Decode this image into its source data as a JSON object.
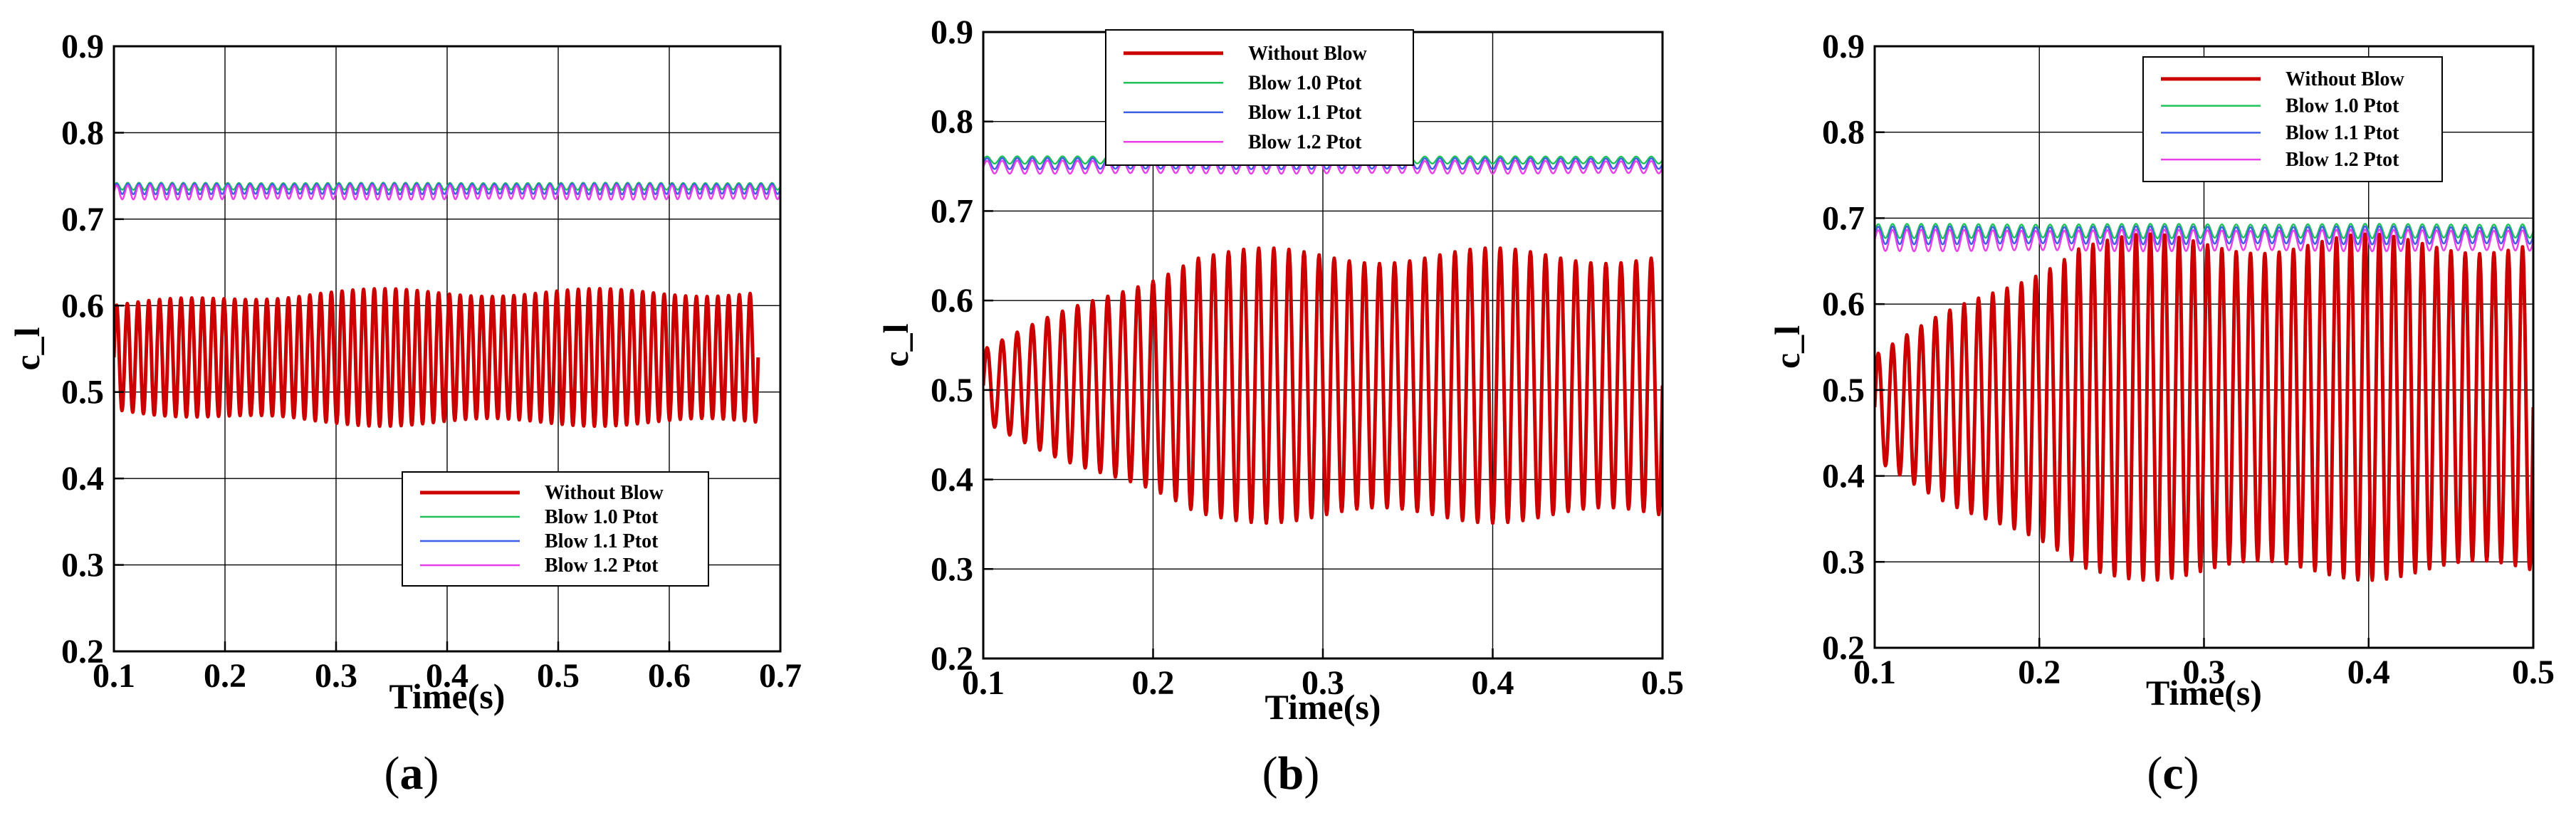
{
  "series_styles": [
    {
      "name": "Without Blow",
      "color": "#cc0000",
      "width": 5
    },
    {
      "name": "Blow 1.0 Ptot",
      "color": "#22c25a",
      "width": 2.4
    },
    {
      "name": "Blow 1.1 Ptot",
      "color": "#3f5fe8",
      "width": 2.4
    },
    {
      "name": "Blow 1.2 Ptot",
      "color": "#e83fe8",
      "width": 2.4
    }
  ],
  "chart_data": [
    {
      "type": "line",
      "panel_label": "a",
      "xlabel": "Time(s)",
      "ylabel": "c_l",
      "xlim": [
        0.1,
        0.7
      ],
      "ylim": [
        0.2,
        0.9
      ],
      "xticks": [
        0.1,
        0.2,
        0.3,
        0.4,
        0.5,
        0.6,
        0.7
      ],
      "xtick_labels": [
        "0.1",
        "0.2",
        "0.3",
        "0.4",
        "0.5",
        "0.6",
        "0.7"
      ],
      "yticks": [
        0.2,
        0.3,
        0.4,
        0.5,
        0.6,
        0.7,
        0.8,
        0.9
      ],
      "ytick_labels": [
        "0.2",
        "0.3",
        "0.4",
        "0.5",
        "0.6",
        "0.7",
        "0.8",
        "0.9"
      ],
      "grid": true,
      "legend": "bottom-center",
      "series": [
        {
          "name": "Without Blow",
          "x_start": 0.1,
          "x_end": 0.68,
          "mean": 0.54,
          "amplitude_start": 0.06,
          "amplitude_end": 0.075,
          "cycles": 60
        },
        {
          "name": "Blow 1.0 Ptot",
          "x_start": 0.1,
          "x_end": 0.7,
          "mean": 0.738,
          "amplitude_start": 0.004,
          "amplitude_end": 0.004,
          "cycles": 60
        },
        {
          "name": "Blow 1.1 Ptot",
          "x_start": 0.1,
          "x_end": 0.7,
          "mean": 0.735,
          "amplitude_start": 0.006,
          "amplitude_end": 0.006,
          "cycles": 60
        },
        {
          "name": "Blow 1.2 Ptot",
          "x_start": 0.1,
          "x_end": 0.7,
          "mean": 0.731,
          "amplitude_start": 0.008,
          "amplitude_end": 0.008,
          "cycles": 60
        }
      ]
    },
    {
      "type": "line",
      "panel_label": "b",
      "xlabel": "Time(s)",
      "ylabel": "c_l",
      "xlim": [
        0.1,
        0.5
      ],
      "ylim": [
        0.2,
        0.9
      ],
      "xticks": [
        0.1,
        0.2,
        0.3,
        0.4,
        0.5
      ],
      "xtick_labels": [
        "0.1",
        "0.2",
        "0.3",
        "0.4",
        "0.5"
      ],
      "yticks": [
        0.2,
        0.3,
        0.4,
        0.5,
        0.6,
        0.7,
        0.8,
        0.9
      ],
      "ytick_labels": [
        "0.2",
        "0.3",
        "0.4",
        "0.5",
        "0.6",
        "0.7",
        "0.8",
        "0.9"
      ],
      "grid": true,
      "legend": "top-center",
      "series": [
        {
          "name": "Without Blow",
          "x_start": 0.1,
          "x_end": 0.5,
          "mean": 0.505,
          "amplitude_start": 0.04,
          "amplitude_end": 0.145,
          "cycles": 45
        },
        {
          "name": "Blow 1.0 Ptot",
          "x_start": 0.1,
          "x_end": 0.5,
          "mean": 0.757,
          "amplitude_start": 0.004,
          "amplitude_end": 0.004,
          "cycles": 45
        },
        {
          "name": "Blow 1.1 Ptot",
          "x_start": 0.1,
          "x_end": 0.5,
          "mean": 0.753,
          "amplitude_start": 0.006,
          "amplitude_end": 0.006,
          "cycles": 45
        },
        {
          "name": "Blow 1.2 Ptot",
          "x_start": 0.1,
          "x_end": 0.5,
          "mean": 0.749,
          "amplitude_start": 0.007,
          "amplitude_end": 0.007,
          "cycles": 45
        }
      ]
    },
    {
      "type": "line",
      "panel_label": "c",
      "xlabel": "Time(s)",
      "ylabel": "c_l",
      "xlim": [
        0.1,
        0.5
      ],
      "ylim": [
        0.2,
        0.9
      ],
      "xticks": [
        0.1,
        0.2,
        0.3,
        0.4,
        0.5
      ],
      "xtick_labels": [
        "0.1",
        "0.2",
        "0.3",
        "0.4",
        "0.5"
      ],
      "yticks": [
        0.2,
        0.3,
        0.4,
        0.5,
        0.6,
        0.7,
        0.8,
        0.9
      ],
      "ytick_labels": [
        "0.2",
        "0.3",
        "0.4",
        "0.5",
        "0.6",
        "0.7",
        "0.8",
        "0.9"
      ],
      "grid": true,
      "legend": "top-center",
      "series": [
        {
          "name": "Without Blow",
          "x_start": 0.1,
          "x_end": 0.5,
          "mean": 0.48,
          "amplitude_start": 0.06,
          "amplitude_end": 0.19,
          "cycles": 46
        },
        {
          "name": "Blow 1.0 Ptot",
          "x_start": 0.1,
          "x_end": 0.5,
          "mean": 0.685,
          "amplitude_start": 0.008,
          "amplitude_end": 0.008,
          "cycles": 46
        },
        {
          "name": "Blow 1.1 Ptot",
          "x_start": 0.1,
          "x_end": 0.5,
          "mean": 0.68,
          "amplitude_start": 0.01,
          "amplitude_end": 0.01,
          "cycles": 46
        },
        {
          "name": "Blow 1.2 Ptot",
          "x_start": 0.1,
          "x_end": 0.5,
          "mean": 0.674,
          "amplitude_start": 0.012,
          "amplitude_end": 0.012,
          "cycles": 46
        }
      ]
    }
  ]
}
